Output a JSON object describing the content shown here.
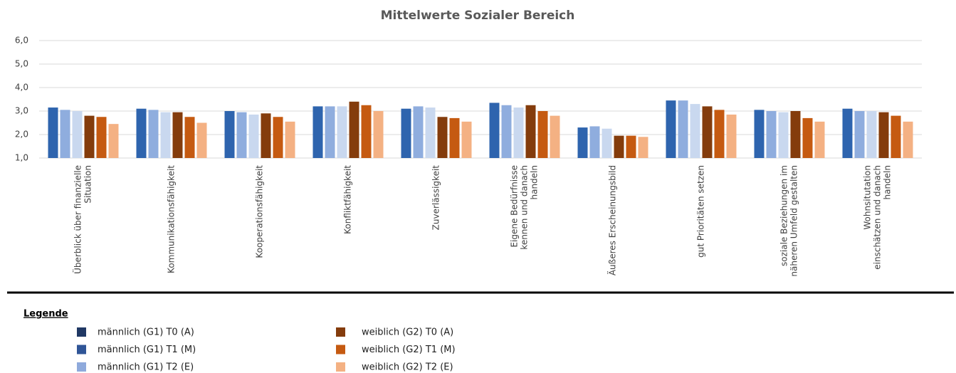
{
  "chart_data": {
    "type": "bar",
    "title": "Mittelwerte Sozialer Bereich",
    "categories": [
      [
        "Überblick über finanzielle",
        "Situation"
      ],
      [
        "Kommunikationsfähigkeit"
      ],
      [
        "Kooperationsfähigkeit"
      ],
      [
        "Konfliktfähigkeit"
      ],
      [
        "Zuverlässigkeit"
      ],
      [
        "Eigene Bedürfnisse",
        "kennen und danach",
        "handeln"
      ],
      [
        "Äußeres Erscheinungsbild"
      ],
      [
        "gut Prioritäten setzen"
      ],
      [
        "soziale Beziehungen im",
        "näheren Umfeld gestalten"
      ],
      [
        "Wohnsitutation",
        "einschätzen und danach",
        "handeln"
      ]
    ],
    "series": [
      {
        "name": "männlich (G1) T0 (A)",
        "color": "#2e64ae",
        "values": [
          3.15,
          3.1,
          3.0,
          3.2,
          3.1,
          3.35,
          2.3,
          3.45,
          3.05,
          3.1
        ]
      },
      {
        "name": "männlich (G1) T1 (M)",
        "color": "#8fadde",
        "values": [
          3.05,
          3.05,
          2.95,
          3.2,
          3.2,
          3.25,
          2.35,
          3.45,
          3.0,
          3.0
        ]
      },
      {
        "name": "männlich (G1) T2 (E)",
        "color": "#c9d8ef",
        "values": [
          3.0,
          2.95,
          2.85,
          3.2,
          3.15,
          3.15,
          2.25,
          3.3,
          2.95,
          3.0
        ]
      },
      {
        "name": "weiblich (G2) T0 (A)",
        "color": "#843c0c",
        "values": [
          2.8,
          2.95,
          2.9,
          3.4,
          2.75,
          3.25,
          1.95,
          3.2,
          3.0,
          2.95
        ]
      },
      {
        "name": "weiblich (G2) T1 (M)",
        "color": "#c55a11",
        "values": [
          2.75,
          2.75,
          2.75,
          3.25,
          2.7,
          3.0,
          1.95,
          3.05,
          2.7,
          2.8
        ]
      },
      {
        "name": "weiblich (G2) T2 (E)",
        "color": "#f4b183",
        "values": [
          2.45,
          2.5,
          2.55,
          3.0,
          2.55,
          2.8,
          1.9,
          2.85,
          2.55,
          2.55
        ]
      }
    ],
    "ylim": [
      1,
      6
    ],
    "yticks": [
      {
        "value": 1,
        "label": "1,0"
      },
      {
        "value": 2,
        "label": "2,0"
      },
      {
        "value": 3,
        "label": "3,0"
      },
      {
        "value": 4,
        "label": "4,0"
      },
      {
        "value": 5,
        "label": "5,0"
      },
      {
        "value": 6,
        "label": "6,0"
      }
    ],
    "grid": true,
    "legend": {
      "title": "Legende",
      "colors": [
        "#203864",
        "#2f5597",
        "#8faadc",
        "#843c0c",
        "#c55a11",
        "#f4b183"
      ]
    }
  }
}
